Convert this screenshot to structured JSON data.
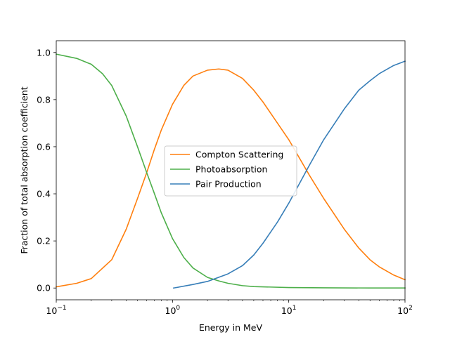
{
  "chart_data": {
    "type": "line",
    "title": "",
    "xlabel": "Energy in MeV",
    "ylabel": "Fraction of total absorption coefficient",
    "xscale": "log",
    "xlim": [
      0.1,
      100
    ],
    "ylim": [
      -0.05,
      1.05
    ],
    "xticks": [
      {
        "value": 0.1,
        "base": "10",
        "exp": "−1"
      },
      {
        "value": 1,
        "base": "10",
        "exp": "0"
      },
      {
        "value": 10,
        "base": "10",
        "exp": "1"
      },
      {
        "value": 100,
        "base": "10",
        "exp": "2"
      }
    ],
    "yticks": [
      {
        "value": 0.0,
        "label": "0.0"
      },
      {
        "value": 0.2,
        "label": "0.2"
      },
      {
        "value": 0.4,
        "label": "0.4"
      },
      {
        "value": 0.6,
        "label": "0.6"
      },
      {
        "value": 0.8,
        "label": "0.8"
      },
      {
        "value": 1.0,
        "label": "1.0"
      }
    ],
    "grid": false,
    "legend_position": "center",
    "series": [
      {
        "name": "Compton Scattering",
        "color": "#ff7f0e",
        "x": [
          0.1,
          0.15,
          0.2,
          0.3,
          0.4,
          0.5,
          0.6,
          0.7,
          0.8,
          1.0,
          1.25,
          1.5,
          2.0,
          2.5,
          3.0,
          4.0,
          5.0,
          6.0,
          8.0,
          10,
          15,
          20,
          30,
          40,
          50,
          60,
          80,
          100
        ],
        "y": [
          0.005,
          0.02,
          0.04,
          0.12,
          0.25,
          0.38,
          0.49,
          0.59,
          0.67,
          0.78,
          0.86,
          0.9,
          0.925,
          0.93,
          0.925,
          0.89,
          0.84,
          0.79,
          0.7,
          0.63,
          0.48,
          0.38,
          0.25,
          0.17,
          0.12,
          0.09,
          0.055,
          0.035
        ]
      },
      {
        "name": "Photoabsorption",
        "color": "#4daf4a",
        "x": [
          0.1,
          0.15,
          0.2,
          0.25,
          0.3,
          0.4,
          0.5,
          0.6,
          0.7,
          0.8,
          1.0,
          1.25,
          1.5,
          2.0,
          2.5,
          3.0,
          4.0,
          5.0,
          10,
          20,
          50,
          100
        ],
        "y": [
          0.993,
          0.975,
          0.95,
          0.91,
          0.86,
          0.73,
          0.6,
          0.49,
          0.4,
          0.32,
          0.21,
          0.13,
          0.085,
          0.045,
          0.03,
          0.02,
          0.01,
          0.006,
          0.002,
          0.001,
          0.0,
          0.0
        ]
      },
      {
        "name": "Pair Production",
        "color": "#377eb8",
        "x": [
          1.022,
          1.5,
          2.0,
          3.0,
          4.0,
          5.0,
          6.0,
          8.0,
          10,
          15,
          20,
          30,
          40,
          50,
          60,
          80,
          100
        ],
        "y": [
          0.0,
          0.015,
          0.028,
          0.06,
          0.095,
          0.14,
          0.19,
          0.28,
          0.36,
          0.52,
          0.63,
          0.76,
          0.84,
          0.88,
          0.91,
          0.945,
          0.963
        ]
      }
    ]
  }
}
